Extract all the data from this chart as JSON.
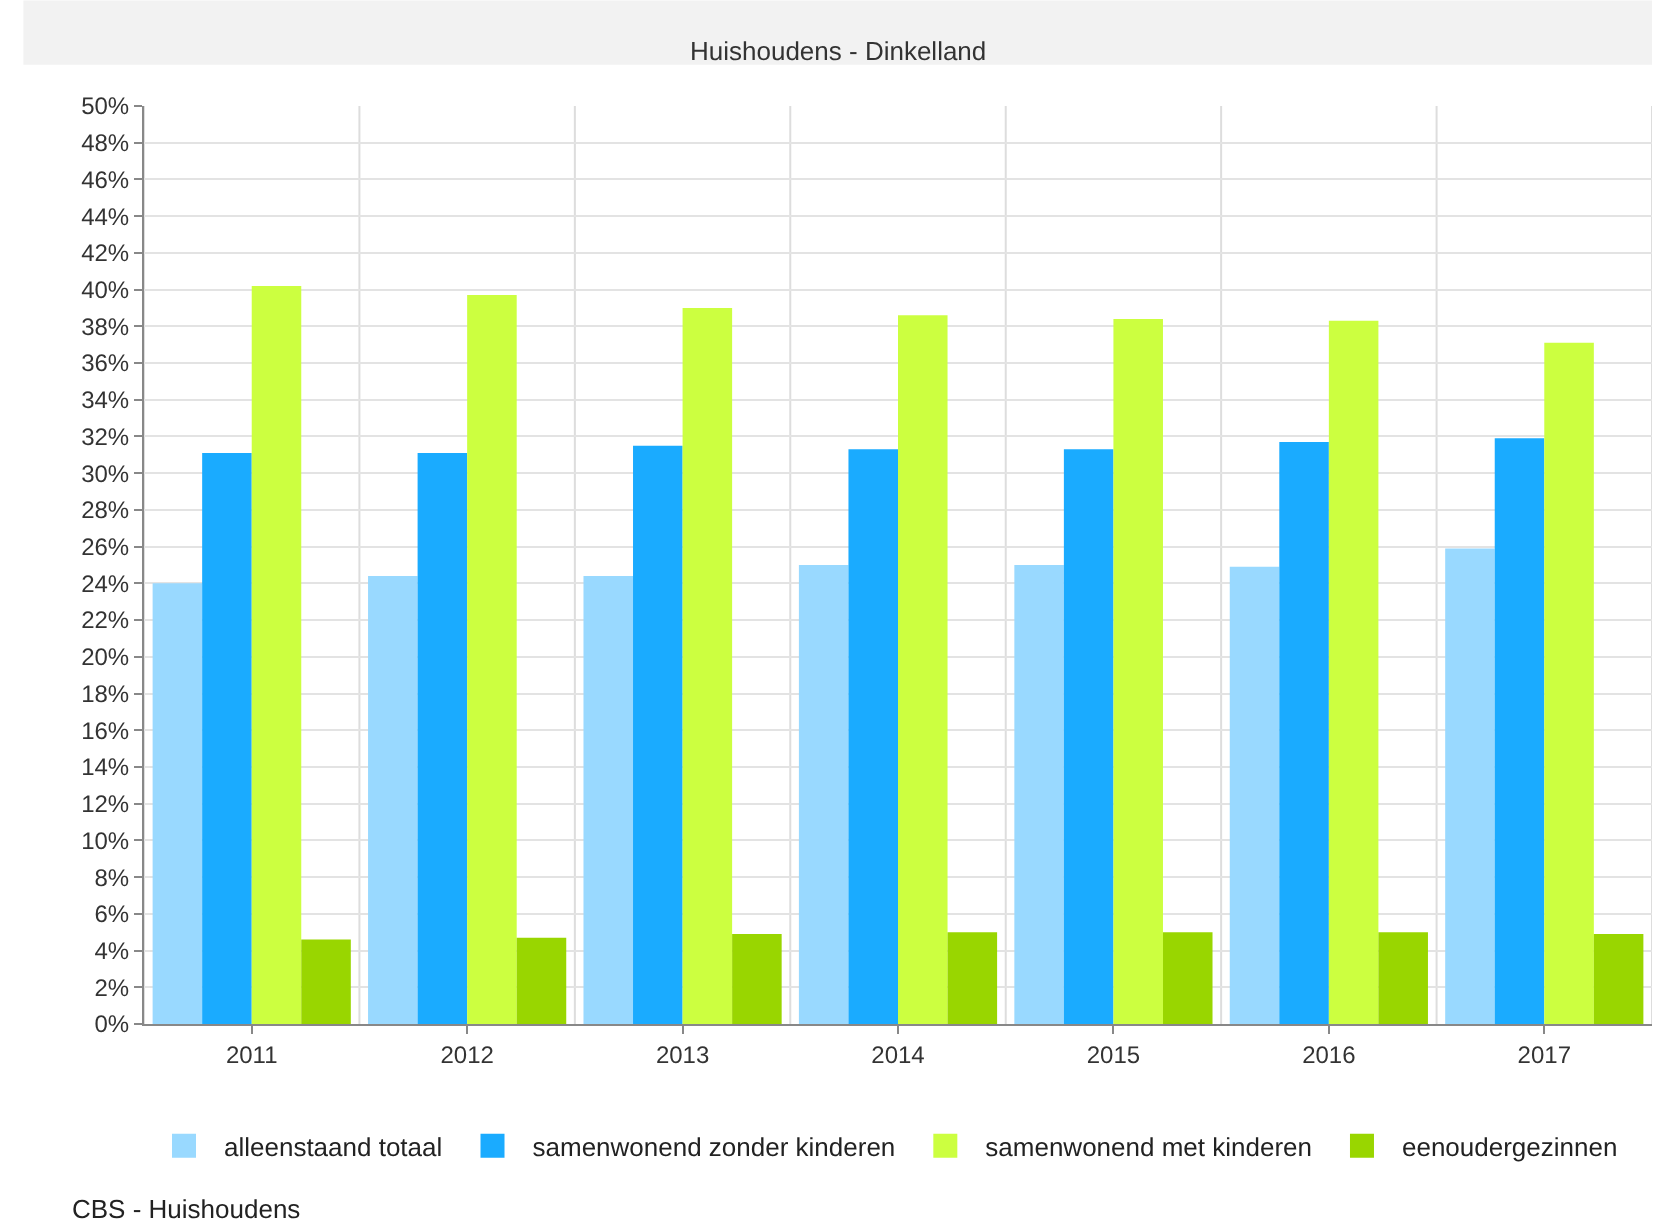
{
  "chart_data": {
    "type": "bar",
    "title": "Huishoudens - Dinkelland",
    "categories": [
      "2011",
      "2012",
      "2013",
      "2014",
      "2015",
      "2016",
      "2017"
    ],
    "series": [
      {
        "name": "alleenstaand totaal",
        "color": "#99d9ff",
        "values": [
          24.0,
          24.4,
          24.4,
          25.0,
          25.0,
          24.9,
          25.9
        ]
      },
      {
        "name": "samenwonend zonder kinderen",
        "color": "#1aabff",
        "values": [
          31.1,
          31.1,
          31.5,
          31.3,
          31.3,
          31.7,
          31.9
        ]
      },
      {
        "name": "samenwonend met kinderen",
        "color": "#ccff40",
        "values": [
          40.2,
          39.7,
          39.0,
          38.6,
          38.4,
          38.3,
          37.1
        ]
      },
      {
        "name": "eenoudergezinnen",
        "color": "#99d600",
        "values": [
          4.6,
          4.7,
          4.9,
          5.0,
          5.0,
          5.0,
          4.9
        ]
      }
    ],
    "ylim": [
      0,
      50
    ],
    "yticks": [
      {
        "value": 0,
        "label": "0%"
      },
      {
        "value": 2,
        "label": "2%"
      },
      {
        "value": 4,
        "label": "4%"
      },
      {
        "value": 6,
        "label": "6%"
      },
      {
        "value": 8,
        "label": "8%"
      },
      {
        "value": 10,
        "label": "10%"
      },
      {
        "value": 12,
        "label": "12%"
      },
      {
        "value": 14,
        "label": "14%"
      },
      {
        "value": 16,
        "label": "16%"
      },
      {
        "value": 18,
        "label": "18%"
      },
      {
        "value": 20,
        "label": "20%"
      },
      {
        "value": 22,
        "label": "22%"
      },
      {
        "value": 24,
        "label": "24%"
      },
      {
        "value": 26,
        "label": "26%"
      },
      {
        "value": 28,
        "label": "28%"
      },
      {
        "value": 30,
        "label": "30%"
      },
      {
        "value": 32,
        "label": "32%"
      },
      {
        "value": 34,
        "label": "34%"
      },
      {
        "value": 36,
        "label": "36%"
      },
      {
        "value": 38,
        "label": "38%"
      },
      {
        "value": 40,
        "label": "40%"
      },
      {
        "value": 42,
        "label": "42%"
      },
      {
        "value": 44,
        "label": "44%"
      },
      {
        "value": 46,
        "label": "46%"
      },
      {
        "value": 48,
        "label": "48%"
      },
      {
        "value": 50,
        "label": "50%"
      }
    ],
    "grid": true,
    "legend": "bottom left",
    "annotations": [
      "CBS - Huishoudens"
    ]
  }
}
